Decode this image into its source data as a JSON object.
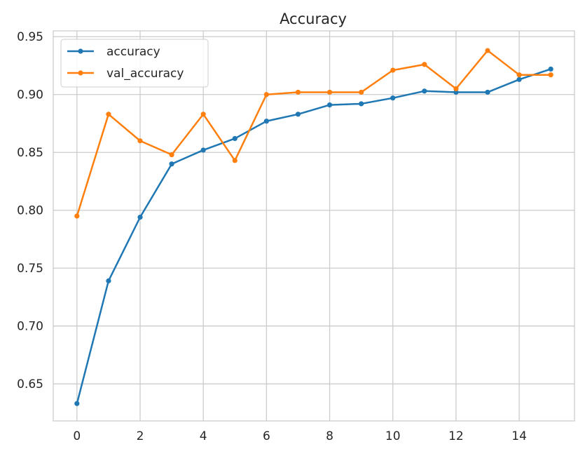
{
  "chart_data": {
    "type": "line",
    "title": "Accuracy",
    "xlabel": "",
    "ylabel": "",
    "xlim": [
      -0.75,
      15.75
    ],
    "ylim": [
      0.618,
      0.955
    ],
    "x_ticks": [
      0,
      2,
      4,
      6,
      8,
      10,
      12,
      14
    ],
    "y_ticks": [
      0.65,
      0.7,
      0.75,
      0.8,
      0.85,
      0.9,
      0.95
    ],
    "y_tick_labels": [
      "0.65",
      "0.70",
      "0.75",
      "0.80",
      "0.85",
      "0.90",
      "0.95"
    ],
    "grid": true,
    "legend_position": "top-left",
    "x": [
      0,
      1,
      2,
      3,
      4,
      5,
      6,
      7,
      8,
      9,
      10,
      11,
      12,
      13,
      14,
      15
    ],
    "series": [
      {
        "name": "accuracy",
        "color": "#1f77b4",
        "values": [
          0.633,
          0.739,
          0.794,
          0.84,
          0.852,
          0.862,
          0.877,
          0.883,
          0.891,
          0.892,
          0.897,
          0.903,
          0.902,
          0.902,
          0.913,
          0.922
        ]
      },
      {
        "name": "val_accuracy",
        "color": "#ff7f0e",
        "values": [
          0.795,
          0.883,
          0.86,
          0.848,
          0.883,
          0.843,
          0.9,
          0.902,
          0.902,
          0.902,
          0.921,
          0.926,
          0.905,
          0.938,
          0.917,
          0.917
        ]
      }
    ]
  }
}
